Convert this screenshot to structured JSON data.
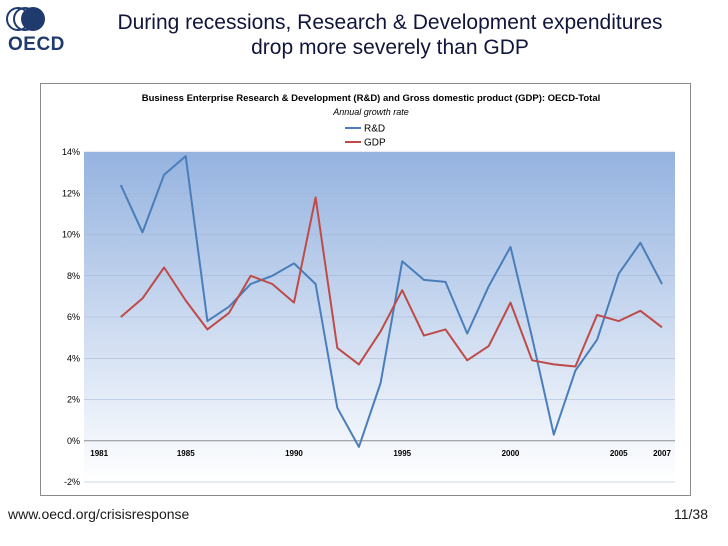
{
  "header": {
    "logo_text": "OECD",
    "title_line1": "During recessions, Research & Development expenditures",
    "title_line2": "drop more severely than GDP"
  },
  "footer": {
    "url": "www.oecd.org/crisisresponse",
    "page": "11/38"
  },
  "colors": {
    "rd": "#4a7ebb",
    "gdp": "#be4b48",
    "plot_top": "#95b3e0",
    "plot_bottom": "#ffffff"
  },
  "chart_data": {
    "type": "line",
    "title": "Business Enterprise Research & Development (R&D) and Gross domestic product (GDP): OECD-Total",
    "subtitle": "Annual growth rate",
    "x": [
      1982,
      1983,
      1984,
      1985,
      1986,
      1987,
      1988,
      1989,
      1990,
      1991,
      1992,
      1993,
      1994,
      1995,
      1996,
      1997,
      1998,
      1999,
      2000,
      2001,
      2002,
      2003,
      2004,
      2005,
      2006,
      2007
    ],
    "series": [
      {
        "name": "R&D",
        "values": [
          12.4,
          10.1,
          12.9,
          13.8,
          5.8,
          6.5,
          7.6,
          8.0,
          8.6,
          7.6,
          1.6,
          -0.3,
          2.8,
          8.7,
          7.8,
          7.7,
          5.2,
          7.5,
          9.4,
          5.0,
          0.3,
          3.4,
          4.9,
          8.1,
          9.6,
          7.6
        ]
      },
      {
        "name": "GDP",
        "values": [
          6.0,
          6.9,
          8.4,
          6.8,
          5.4,
          6.2,
          8.0,
          7.6,
          6.7,
          11.8,
          4.5,
          3.7,
          5.3,
          7.3,
          5.1,
          5.4,
          3.9,
          4.6,
          6.7,
          3.9,
          3.7,
          3.6,
          6.1,
          5.8,
          6.3,
          5.5
        ]
      }
    ],
    "ylim": [
      -2,
      14
    ],
    "yticks": [
      -2,
      0,
      2,
      4,
      6,
      8,
      10,
      12,
      14
    ],
    "ytick_labels": [
      "-2%",
      "0%",
      "2%",
      "4%",
      "6%",
      "8%",
      "10%",
      "12%",
      "14%"
    ],
    "xticks": [
      1981,
      1985,
      1990,
      1995,
      2000,
      2005,
      2007
    ],
    "xtick_labels": [
      "1981",
      "1985",
      "1990",
      "1995",
      "2000",
      "2005",
      "2007"
    ],
    "xlim": [
      1980.3,
      2007.6
    ],
    "legend": [
      "R&D",
      "GDP"
    ],
    "legend_position": "top-center",
    "grid": true
  }
}
